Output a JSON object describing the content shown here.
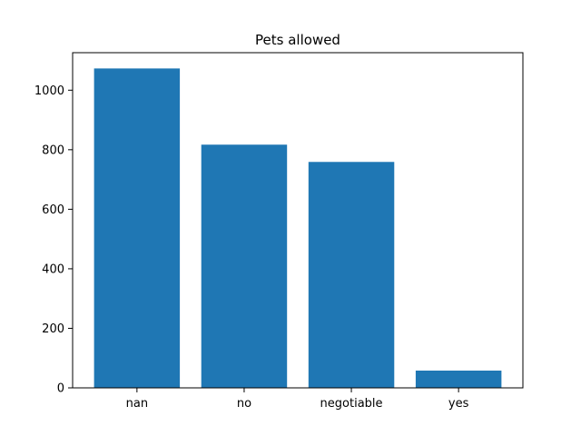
{
  "chart_data": {
    "type": "bar",
    "title": "Pets allowed",
    "xlabel": "",
    "ylabel": "",
    "categories": [
      "nan",
      "no",
      "negotiable",
      "yes"
    ],
    "values": [
      1073,
      817,
      759,
      58
    ],
    "ylim": [
      0,
      1126
    ],
    "yticks": [
      0,
      200,
      400,
      600,
      800,
      1000
    ],
    "grid": false,
    "bar_color": "#1f77b4"
  }
}
